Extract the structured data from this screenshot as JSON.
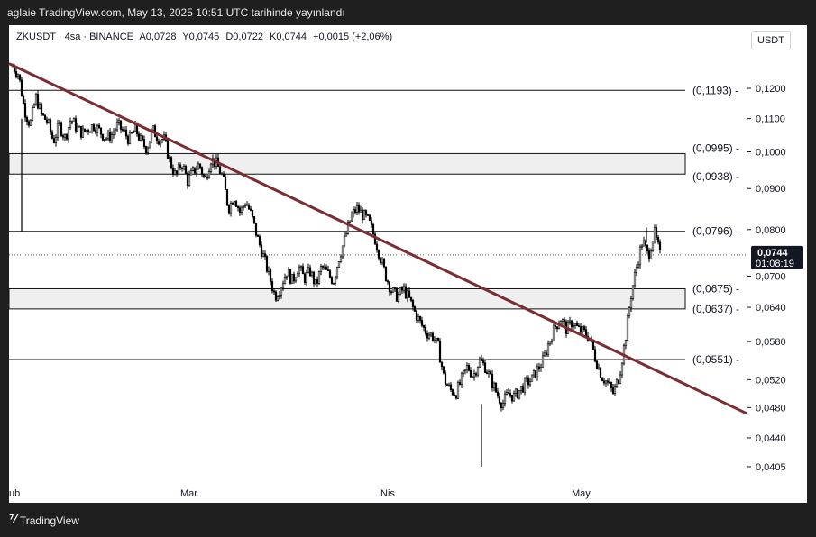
{
  "header": {
    "caption": "aglaie TradingView.com, May 13, 2025 10:51 UTC tarihinde yayınlandı"
  },
  "legend": {
    "symbol": "ZKUSDT · 4sa · BINANCE",
    "open": "A0,0728",
    "high": "Y0,0745",
    "low": "D0,0722",
    "close": "K0,0744",
    "change": "+0,0015 (+2,06%)"
  },
  "unit_button": "USDT",
  "footer": {
    "logo_text": "TradingView",
    "logo_icon": "tradingview-logo-icon"
  },
  "colors": {
    "trendline": "#7b2d32",
    "zone_fill": "#efefef",
    "candle": "#000000",
    "price_tag": "#131722"
  },
  "chart_data": {
    "type": "candlestick",
    "symbol": "ZKUSDT",
    "exchange": "BINANCE",
    "interval": "4sa",
    "x_ticks": [
      "ub",
      "Mar",
      "Nis",
      "May"
    ],
    "y_ticks": [
      "0,1200",
      "0,1100",
      "0,1000",
      "0,0900",
      "0,0800",
      "0,0700",
      "0,0640",
      "0,0580",
      "0,0520",
      "0,0480",
      "0,0440",
      "0,0405"
    ],
    "y_tick_values": [
      0.12,
      0.11,
      0.1,
      0.09,
      0.08,
      0.07,
      0.064,
      0.058,
      0.052,
      0.048,
      0.044,
      0.0405
    ],
    "ylim": [
      0.0395,
      0.128
    ],
    "axis_scale": "log",
    "horizontal_levels": [
      {
        "label": "(0,1193)",
        "value": 0.1193
      },
      {
        "label": "(0,0995)",
        "value": 0.0995
      },
      {
        "label": "(0,0938)",
        "value": 0.0938
      },
      {
        "label": "(0,0796)",
        "value": 0.0796
      },
      {
        "label": "(0,0675)",
        "value": 0.0675
      },
      {
        "label": "(0,0637)",
        "value": 0.0637
      },
      {
        "label": "(0,0551)",
        "value": 0.0551
      }
    ],
    "zones": [
      {
        "from": 0.0938,
        "to": 0.0995
      },
      {
        "from": 0.0637,
        "to": 0.0675
      }
    ],
    "trendline": {
      "start_value": 0.1288,
      "end_value": 0.0472,
      "description": "descending resistance line"
    },
    "current_price": {
      "label": "0,0744",
      "value": 0.0744,
      "countdown": "01:08:19"
    },
    "price_path": [
      0.128,
      0.125,
      0.113,
      0.108,
      0.117,
      0.111,
      0.109,
      0.103,
      0.108,
      0.104,
      0.11,
      0.107,
      0.1055,
      0.107,
      0.108,
      0.106,
      0.104,
      0.105,
      0.108,
      0.106,
      0.1035,
      0.107,
      0.103,
      0.101,
      0.1065,
      0.104,
      0.1035,
      0.097,
      0.093,
      0.097,
      0.092,
      0.0945,
      0.0965,
      0.092,
      0.098,
      0.0965,
      0.093,
      0.085,
      0.088,
      0.084,
      0.0868,
      0.083,
      0.078,
      0.074,
      0.07,
      0.066,
      0.068,
      0.071,
      0.069,
      0.072,
      0.0695,
      0.071,
      0.068,
      0.072,
      0.0705,
      0.069,
      0.074,
      0.078,
      0.083,
      0.085,
      0.0835,
      0.082,
      0.0785,
      0.074,
      0.07,
      0.067,
      0.066,
      0.0675,
      0.0655,
      0.063,
      0.061,
      0.0595,
      0.059,
      0.057,
      0.052,
      0.0505,
      0.05,
      0.052,
      0.054,
      0.0525,
      0.055,
      0.054,
      0.052,
      0.05,
      0.0485,
      0.05,
      0.0495,
      0.0505,
      0.0515,
      0.052,
      0.0535,
      0.055,
      0.058,
      0.0605,
      0.062,
      0.06,
      0.0615,
      0.06,
      0.0595,
      0.0585,
      0.055,
      0.0525,
      0.0515,
      0.05,
      0.0525,
      0.058,
      0.066,
      0.072,
      0.0775,
      0.074,
      0.0795,
      0.0744
    ],
    "low_wick": 0.0405,
    "high_wick": 0.0805
  }
}
